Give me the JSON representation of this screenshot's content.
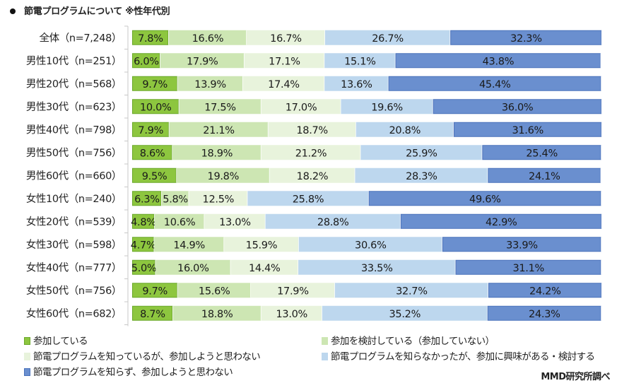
{
  "title": "節電プログラムについて ※性年代別",
  "credit": "MMD研究所調べ",
  "colors": [
    "#8dc63f",
    "#cde6b3",
    "#e8f3dc",
    "#bdd7ee",
    "#6a8fcf"
  ],
  "border_colors": [
    "#6aa82a",
    "#cde6b3",
    "#e8f3dc",
    "#bdd7ee",
    "#4a72bb"
  ],
  "chart_data": {
    "type": "bar",
    "orientation": "horizontal",
    "stacked": "100%",
    "title": "節電プログラムについて ※性年代別",
    "xlabel": "",
    "ylabel": "",
    "xlim": [
      0,
      100
    ],
    "grid": false,
    "legend_position": "bottom",
    "categories": [
      "全体（n=7,248）",
      "男性10代（n=251）",
      "男性20代（n=568）",
      "男性30代（n=623）",
      "男性40代（n=798）",
      "男性50代（n=756）",
      "男性60代（n=660）",
      "女性10代（n=240）",
      "女性20代（n=539）",
      "女性30代（n=598）",
      "女性40代（n=777）",
      "女性50代（n=756）",
      "女性60代（n=682）"
    ],
    "series": [
      {
        "name": "参加している",
        "values": [
          7.8,
          6.0,
          9.7,
          10.0,
          7.9,
          8.6,
          9.5,
          6.3,
          4.8,
          4.7,
          5.0,
          9.7,
          8.7
        ]
      },
      {
        "name": "参加を検討している（参加していない）",
        "values": [
          16.6,
          17.9,
          13.9,
          17.5,
          21.1,
          18.9,
          19.8,
          5.8,
          10.6,
          14.9,
          16.0,
          15.6,
          18.8
        ]
      },
      {
        "name": "節電プログラムを知っているが、参加しようと思わない",
        "values": [
          16.7,
          17.1,
          17.4,
          17.0,
          18.7,
          21.2,
          18.2,
          12.5,
          13.0,
          15.9,
          14.4,
          17.9,
          13.0
        ]
      },
      {
        "name": "節電プログラムを知らなかったが、参加に興味がある・検討する",
        "values": [
          26.7,
          15.1,
          13.6,
          19.6,
          20.8,
          25.9,
          28.3,
          25.8,
          28.8,
          30.6,
          33.5,
          32.7,
          35.2
        ]
      },
      {
        "name": "節電プログラムを知らず、参加しようと思わない",
        "values": [
          32.3,
          43.8,
          45.4,
          36.0,
          31.6,
          25.4,
          24.1,
          49.6,
          42.9,
          33.9,
          31.1,
          24.2,
          24.3
        ]
      }
    ]
  }
}
